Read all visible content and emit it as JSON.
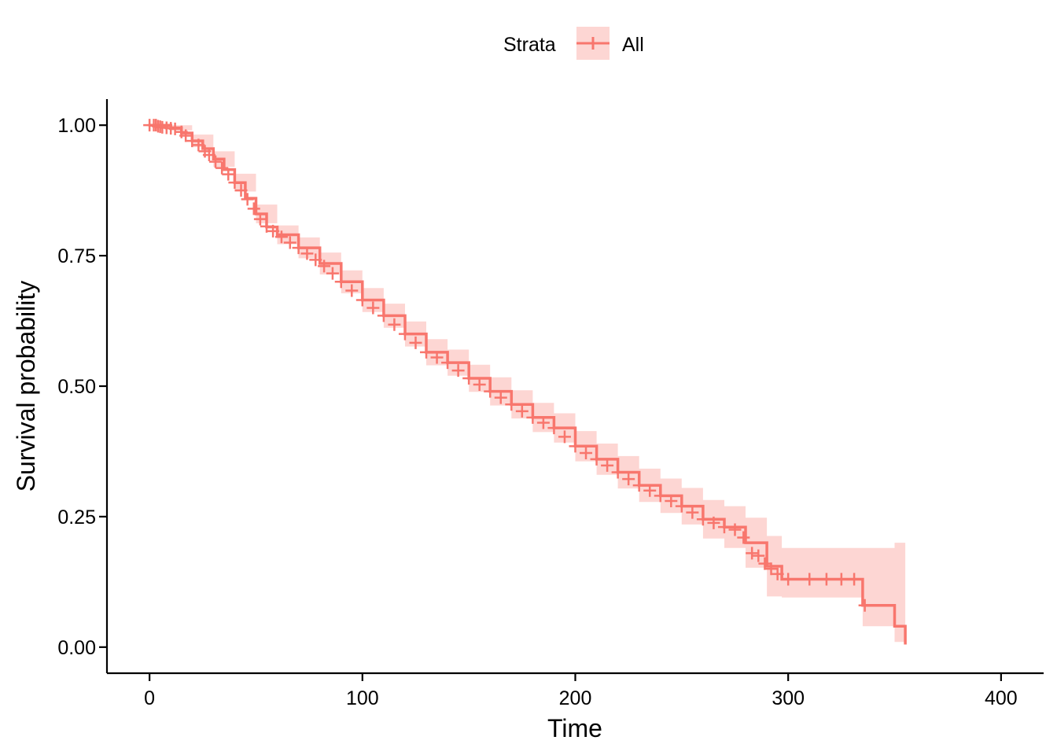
{
  "chart_data": {
    "type": "line",
    "subtype": "kaplan-meier survival curve with confidence band and censor marks",
    "xlabel": "Time",
    "ylabel": "Survival probability",
    "xlim": [
      -20,
      420
    ],
    "ylim": [
      -0.05,
      1.05
    ],
    "x_ticks": [
      0,
      100,
      200,
      300,
      400
    ],
    "x_tick_labels": [
      "0",
      "100",
      "200",
      "300",
      "400"
    ],
    "y_ticks": [
      0,
      0.25,
      0.5,
      0.75,
      1.0
    ],
    "y_tick_labels": [
      "0.00",
      "0.25",
      "0.50",
      "0.75",
      "1.00"
    ],
    "grid": false,
    "legend": {
      "position": "top",
      "title": "Strata",
      "entries": [
        "All"
      ]
    },
    "series": [
      {
        "name": "All",
        "color": "#F8766D",
        "band_color": "#F8766D",
        "band_opacity": 0.3,
        "points": [
          [
            0,
            1.0
          ],
          [
            10,
            0.995
          ],
          [
            15,
            0.985
          ],
          [
            20,
            0.97
          ],
          [
            25,
            0.955
          ],
          [
            30,
            0.935
          ],
          [
            35,
            0.915
          ],
          [
            40,
            0.89
          ],
          [
            45,
            0.86
          ],
          [
            50,
            0.83
          ],
          [
            55,
            0.805
          ],
          [
            60,
            0.79
          ],
          [
            70,
            0.765
          ],
          [
            80,
            0.735
          ],
          [
            90,
            0.7
          ],
          [
            100,
            0.665
          ],
          [
            110,
            0.635
          ],
          [
            120,
            0.6
          ],
          [
            130,
            0.565
          ],
          [
            140,
            0.545
          ],
          [
            150,
            0.515
          ],
          [
            160,
            0.49
          ],
          [
            170,
            0.465
          ],
          [
            180,
            0.44
          ],
          [
            190,
            0.42
          ],
          [
            200,
            0.385
          ],
          [
            210,
            0.36
          ],
          [
            220,
            0.335
          ],
          [
            230,
            0.31
          ],
          [
            240,
            0.29
          ],
          [
            250,
            0.27
          ],
          [
            260,
            0.245
          ],
          [
            270,
            0.23
          ],
          [
            280,
            0.2
          ],
          [
            290,
            0.155
          ],
          [
            297,
            0.13
          ],
          [
            335,
            0.13
          ],
          [
            335,
            0.08
          ],
          [
            350,
            0.08
          ],
          [
            350,
            0.04
          ],
          [
            355,
            0.04
          ],
          [
            355,
            0.005
          ]
        ],
        "upper": [
          [
            0,
            1.0
          ],
          [
            10,
            1.0
          ],
          [
            20,
            0.982
          ],
          [
            30,
            0.95
          ],
          [
            40,
            0.907
          ],
          [
            50,
            0.848
          ],
          [
            60,
            0.808
          ],
          [
            70,
            0.785
          ],
          [
            80,
            0.756
          ],
          [
            90,
            0.722
          ],
          [
            100,
            0.688
          ],
          [
            110,
            0.658
          ],
          [
            120,
            0.624
          ],
          [
            130,
            0.59
          ],
          [
            140,
            0.57
          ],
          [
            150,
            0.541
          ],
          [
            160,
            0.517
          ],
          [
            170,
            0.492
          ],
          [
            180,
            0.468
          ],
          [
            190,
            0.448
          ],
          [
            200,
            0.414
          ],
          [
            210,
            0.39
          ],
          [
            220,
            0.366
          ],
          [
            230,
            0.342
          ],
          [
            240,
            0.323
          ],
          [
            250,
            0.305
          ],
          [
            260,
            0.282
          ],
          [
            270,
            0.27
          ],
          [
            280,
            0.248
          ],
          [
            290,
            0.213
          ],
          [
            297,
            0.19
          ],
          [
            335,
            0.19
          ],
          [
            335,
            0.19
          ],
          [
            350,
            0.19
          ],
          [
            350,
            0.2
          ],
          [
            355,
            0.2
          ]
        ],
        "lower": [
          [
            0,
            1.0
          ],
          [
            10,
            0.99
          ],
          [
            20,
            0.958
          ],
          [
            30,
            0.92
          ],
          [
            40,
            0.873
          ],
          [
            50,
            0.812
          ],
          [
            60,
            0.772
          ],
          [
            70,
            0.745
          ],
          [
            80,
            0.714
          ],
          [
            90,
            0.678
          ],
          [
            100,
            0.642
          ],
          [
            110,
            0.612
          ],
          [
            120,
            0.576
          ],
          [
            130,
            0.54
          ],
          [
            140,
            0.52
          ],
          [
            150,
            0.489
          ],
          [
            160,
            0.463
          ],
          [
            170,
            0.438
          ],
          [
            180,
            0.412
          ],
          [
            190,
            0.392
          ],
          [
            200,
            0.356
          ],
          [
            210,
            0.33
          ],
          [
            220,
            0.304
          ],
          [
            230,
            0.278
          ],
          [
            240,
            0.257
          ],
          [
            250,
            0.235
          ],
          [
            260,
            0.208
          ],
          [
            270,
            0.19
          ],
          [
            280,
            0.152
          ],
          [
            290,
            0.097
          ],
          [
            297,
            0.095
          ],
          [
            335,
            0.095
          ],
          [
            335,
            0.04
          ],
          [
            350,
            0.04
          ],
          [
            350,
            0.01
          ],
          [
            355,
            0.01
          ]
        ],
        "censor_marks": [
          [
            0,
            1.0
          ],
          [
            2,
            1.0
          ],
          [
            3,
            1.0
          ],
          [
            4,
            0.998
          ],
          [
            5,
            0.997
          ],
          [
            6,
            0.996
          ],
          [
            8,
            0.995
          ],
          [
            10,
            0.994
          ],
          [
            12,
            0.993
          ],
          [
            15,
            0.987
          ],
          [
            17,
            0.98
          ],
          [
            20,
            0.97
          ],
          [
            23,
            0.962
          ],
          [
            26,
            0.95
          ],
          [
            28,
            0.943
          ],
          [
            31,
            0.93
          ],
          [
            34,
            0.918
          ],
          [
            37,
            0.906
          ],
          [
            40,
            0.89
          ],
          [
            43,
            0.875
          ],
          [
            46,
            0.858
          ],
          [
            49,
            0.84
          ],
          [
            52,
            0.82
          ],
          [
            55,
            0.806
          ],
          [
            58,
            0.797
          ],
          [
            62,
            0.786
          ],
          [
            66,
            0.775
          ],
          [
            70,
            0.765
          ],
          [
            74,
            0.754
          ],
          [
            78,
            0.742
          ],
          [
            82,
            0.73
          ],
          [
            86,
            0.716
          ],
          [
            90,
            0.7
          ],
          [
            95,
            0.683
          ],
          [
            100,
            0.665
          ],
          [
            105,
            0.65
          ],
          [
            110,
            0.635
          ],
          [
            115,
            0.618
          ],
          [
            120,
            0.6
          ],
          [
            125,
            0.583
          ],
          [
            130,
            0.565
          ],
          [
            135,
            0.555
          ],
          [
            140,
            0.545
          ],
          [
            145,
            0.53
          ],
          [
            150,
            0.515
          ],
          [
            155,
            0.503
          ],
          [
            160,
            0.49
          ],
          [
            165,
            0.478
          ],
          [
            170,
            0.465
          ],
          [
            175,
            0.452
          ],
          [
            180,
            0.44
          ],
          [
            185,
            0.43
          ],
          [
            190,
            0.42
          ],
          [
            195,
            0.403
          ],
          [
            200,
            0.385
          ],
          [
            205,
            0.372
          ],
          [
            210,
            0.36
          ],
          [
            215,
            0.348
          ],
          [
            220,
            0.335
          ],
          [
            225,
            0.322
          ],
          [
            230,
            0.31
          ],
          [
            235,
            0.3
          ],
          [
            240,
            0.29
          ],
          [
            245,
            0.28
          ],
          [
            250,
            0.27
          ],
          [
            255,
            0.258
          ],
          [
            260,
            0.245
          ],
          [
            265,
            0.238
          ],
          [
            270,
            0.23
          ],
          [
            275,
            0.225
          ],
          [
            279,
            0.21
          ],
          [
            283,
            0.18
          ],
          [
            286,
            0.175
          ],
          [
            289,
            0.16
          ],
          [
            292,
            0.15
          ],
          [
            295,
            0.14
          ],
          [
            300,
            0.13
          ],
          [
            310,
            0.13
          ],
          [
            318,
            0.13
          ],
          [
            325,
            0.13
          ],
          [
            331,
            0.13
          ],
          [
            336,
            0.08
          ]
        ]
      }
    ]
  }
}
